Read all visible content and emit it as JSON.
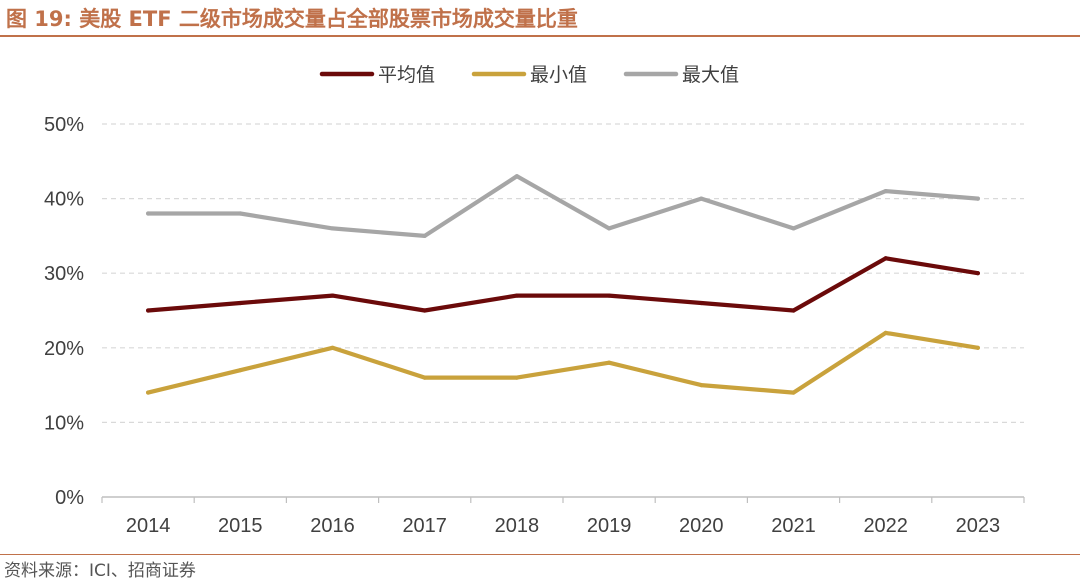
{
  "title": "图 19:  美股 ETF 二级市场成交量占全部股票市场成交量比重",
  "source": "资料来源：ICI、招商证券",
  "colors": {
    "accent": "#c0714a",
    "grid": "#d9d9d9",
    "axis": "#bfbfbf",
    "text": "#404040"
  },
  "chart_data": {
    "type": "line",
    "x": [
      "2014",
      "2015",
      "2016",
      "2017",
      "2018",
      "2019",
      "2020",
      "2021",
      "2022",
      "2023"
    ],
    "ylim": [
      0,
      50
    ],
    "yticks": [
      "0%",
      "10%",
      "20%",
      "30%",
      "40%",
      "50%"
    ],
    "ytick_values": [
      0,
      10,
      20,
      30,
      40,
      50
    ],
    "grid": true,
    "legend_position": "top-center",
    "series": [
      {
        "name": "平均值",
        "color": "#6b0a0a",
        "values": [
          25,
          26,
          27,
          25,
          27,
          27,
          26,
          25,
          32,
          30
        ]
      },
      {
        "name": "最小值",
        "color": "#c9a23c",
        "values": [
          14,
          17,
          20,
          16,
          16,
          18,
          15,
          14,
          22,
          20
        ]
      },
      {
        "name": "最大值",
        "color": "#a6a6a6",
        "values": [
          38,
          38,
          36,
          35,
          43,
          36,
          40,
          36,
          41,
          40
        ]
      }
    ]
  }
}
